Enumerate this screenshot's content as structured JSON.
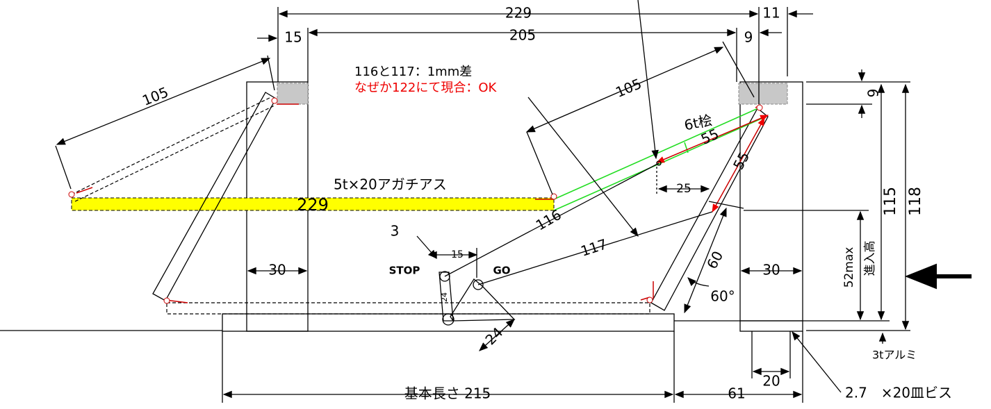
{
  "labels": {
    "top_229": "229",
    "top_11": "11",
    "top_15": "15",
    "top_205": "205",
    "top_9": "9",
    "note_1": "116と117：1mm差",
    "note_2": "なぜか122にて現合：OK",
    "left_105": "105",
    "right_105": "105",
    "wood": "6t桧",
    "dim_55a": "55",
    "dim_55b": "55",
    "dim_25": "25",
    "agathis": "5t×20アガチアス",
    "bar_229": "229",
    "dim_116": "116",
    "num_3": "3",
    "dim_15_small": "15",
    "stop": "STOP",
    "go": "GO",
    "dim_117": "117",
    "dim_60": "60",
    "angle_60": "60°",
    "left_30": "30",
    "right_30": "30",
    "right_9": "9",
    "dim_115": "115",
    "dim_118": "118",
    "max_52": "52max",
    "entry_height": "進入高",
    "small_24": "24",
    "dim_24": "24",
    "base_215": "基本長さ 215",
    "dim_61": "61",
    "dim_20": "20",
    "aluminum": "3tアルミ",
    "screw": "2.7　×20皿ビス"
  }
}
